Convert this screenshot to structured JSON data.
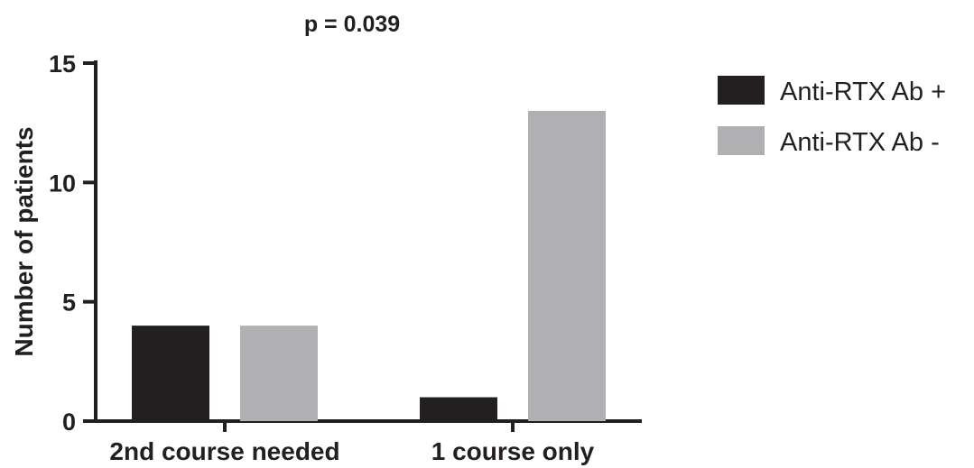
{
  "chart_data": {
    "type": "bar",
    "annotation": "p = 0.039",
    "title": "",
    "xlabel": "",
    "ylabel": "Number of patients",
    "categories": [
      "2nd course needed",
      "1 course only"
    ],
    "series": [
      {
        "name": "Anti-RTX Ab +",
        "color": "#231f20",
        "values": [
          4,
          1
        ]
      },
      {
        "name": "Anti-RTX Ab -",
        "color": "#b0b0b3",
        "values": [
          4,
          13
        ]
      }
    ],
    "ylim": [
      0,
      15
    ],
    "yticks": [
      0,
      5,
      10,
      15
    ],
    "grid": false,
    "legend_position": "top-right"
  }
}
